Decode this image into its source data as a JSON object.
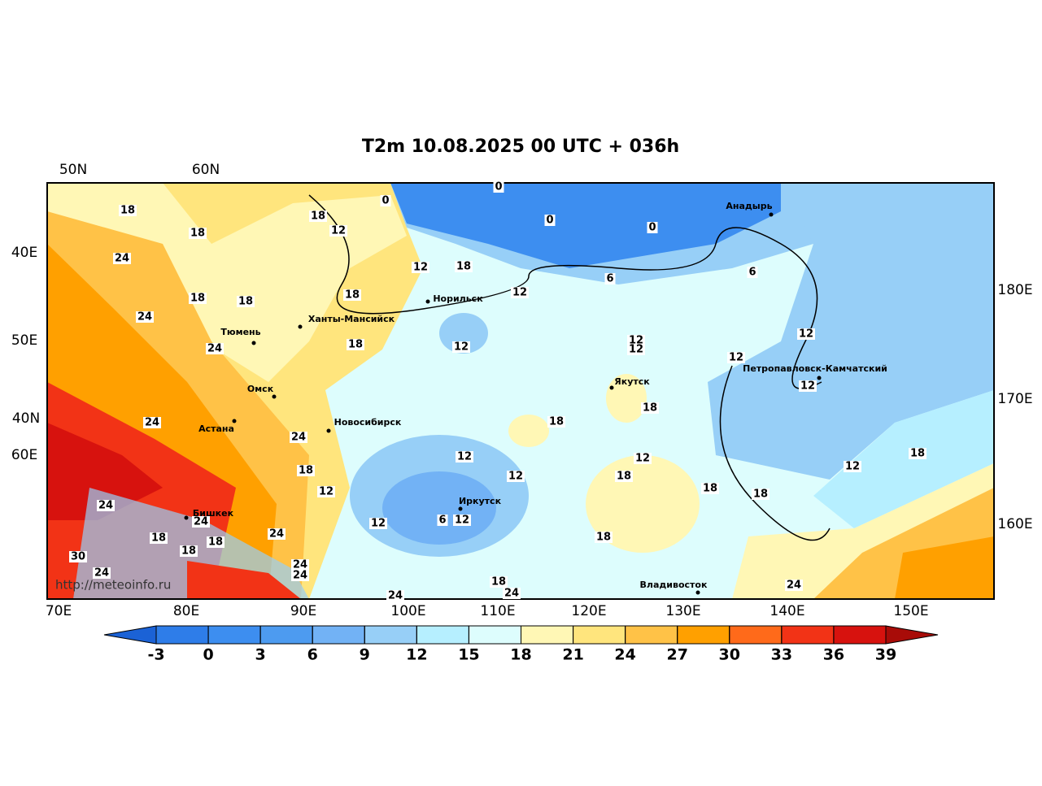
{
  "title": "T2m 10.08.2025 00 UTC + 036h",
  "top_labels": [
    "50N",
    "60N"
  ],
  "left_labels": [
    "40E",
    "50E",
    "40N",
    "60E"
  ],
  "right_labels": [
    "180E",
    "170E",
    "160E"
  ],
  "bottom_labels": [
    "70E",
    "80E",
    "90E",
    "100E",
    "110E",
    "120E",
    "130E",
    "140E",
    "150E"
  ],
  "cities": [
    "Анадырь",
    "Норильск",
    "Ханты-Мансийск",
    "Тюмень",
    "Омск",
    "Новосибирск",
    "Астана",
    "Якутск",
    "Петропавловск-Камчатский",
    "Бишкек",
    "Иркутск",
    "Владивосток"
  ],
  "contour_labels": [
    18,
    18,
    24,
    18,
    12,
    18,
    18,
    24,
    18,
    12,
    18,
    0,
    0,
    0,
    0,
    12,
    6,
    6,
    12,
    18,
    24,
    12,
    12,
    12,
    12,
    12,
    18,
    18,
    24,
    24,
    12,
    12,
    12,
    18,
    18,
    18,
    12,
    18,
    18,
    12,
    24,
    12,
    6,
    12,
    18,
    18,
    18,
    24,
    24,
    30,
    18,
    24,
    24,
    24,
    18,
    24,
    24,
    24
  ],
  "website": "http://meteoinfo.ru",
  "colorbar": {
    "ticks": [
      -3,
      0,
      3,
      6,
      9,
      12,
      15,
      18,
      21,
      24,
      27,
      30,
      33,
      36,
      39
    ],
    "colors": [
      "#2e7de9",
      "#3d8ef0",
      "#4d9bf0",
      "#72b2f5",
      "#97cff7",
      "#b6efff",
      "#ddfdfd",
      "#fff7b5",
      "#ffe57d",
      "#ffc247",
      "#ffa000",
      "#ff6a1a",
      "#f23316",
      "#d7120e"
    ],
    "under_color": "#1b62d6",
    "over_color": "#a80c08"
  }
}
